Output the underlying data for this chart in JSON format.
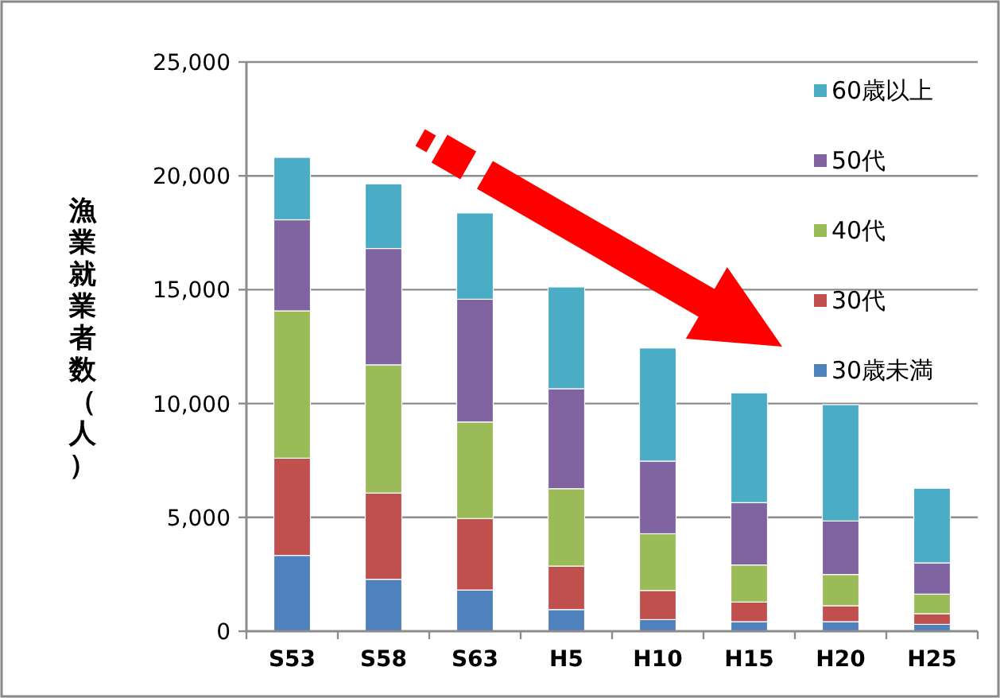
{
  "chart_data": {
    "type": "bar",
    "stacked": true,
    "ylabel": "漁業就業者数（人）",
    "categories": [
      "S53",
      "S58",
      "S63",
      "H5",
      "H10",
      "H15",
      "H20",
      "H25"
    ],
    "series": [
      {
        "name": "30歳未満",
        "color": "#4f81bd",
        "values": [
          3330,
          2280,
          1810,
          950,
          510,
          420,
          420,
          300
        ]
      },
      {
        "name": "30代",
        "color": "#c0504d",
        "values": [
          4270,
          3790,
          3140,
          1910,
          1280,
          860,
          700,
          470
        ]
      },
      {
        "name": "40代",
        "color": "#9bbb59",
        "values": [
          6470,
          5630,
          4240,
          3400,
          2490,
          1630,
          1370,
          860
        ]
      },
      {
        "name": "50代",
        "color": "#8064a2",
        "values": [
          4000,
          5110,
          5390,
          4390,
          3190,
          2740,
          2350,
          1370
        ]
      },
      {
        "name": "60歳以上",
        "color": "#4bacc6",
        "values": [
          2740,
          2840,
          3790,
          4470,
          4970,
          4820,
          5110,
          3280
        ]
      }
    ],
    "ylim": [
      0,
      25000
    ],
    "yticks": [
      0,
      {
        "value": 5000,
        "label": "5,000"
      },
      {
        "value": 10000,
        "label": "10,000"
      },
      {
        "value": 15000,
        "label": "15,000"
      },
      {
        "value": 20000,
        "label": "20,000"
      },
      {
        "value": 25000,
        "label": "25,000"
      }
    ],
    "grid": "y",
    "legend": "top right"
  }
}
